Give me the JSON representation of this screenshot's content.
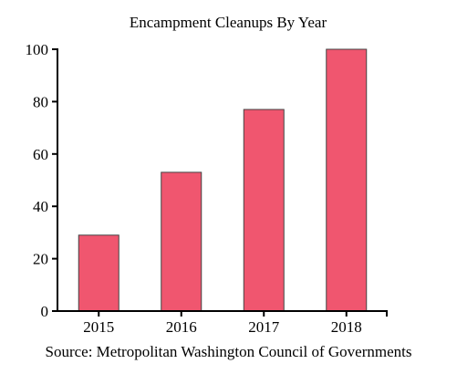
{
  "chart_data": {
    "type": "bar",
    "title": "Encampment Cleanups By Year",
    "categories": [
      "2015",
      "2016",
      "2017",
      "2018"
    ],
    "values": [
      29,
      53,
      77,
      100
    ],
    "ylim": [
      0,
      100
    ],
    "yticks": [
      0,
      20,
      40,
      60,
      80,
      100
    ],
    "xlabel": "",
    "ylabel": "",
    "grid": false,
    "bar_color": "#f0566f",
    "bar_edge_color": "#444444",
    "source": "Source: Metropolitan Washington Council of Governments"
  }
}
